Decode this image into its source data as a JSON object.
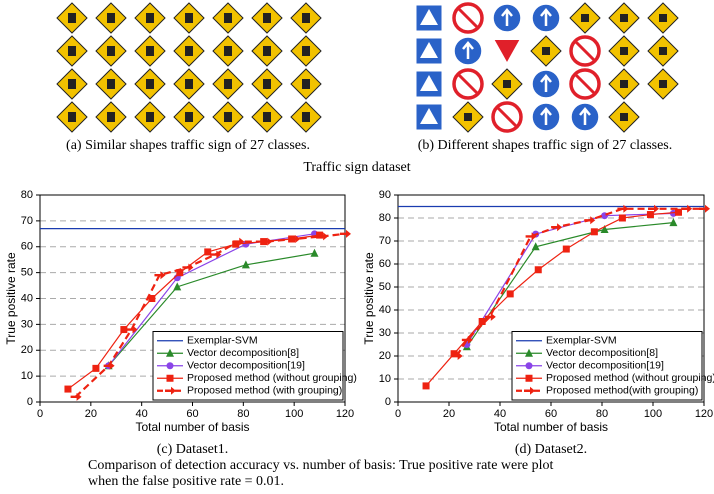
{
  "figure": {
    "caption_a": "(a) Similar shapes traffic sign of 27 classes.",
    "caption_b": "(b) Different shapes traffic sign of 27 classes.",
    "dataset_title": "Traffic sign dataset",
    "caption_bottom": [
      "Comparison of detection accuracy vs. number of basis: True positive rate were plot",
      "when the false positive rate = 0.01."
    ]
  },
  "chart_data": [
    {
      "type": "line",
      "caption": "(c) Dataset1.",
      "xlabel": "Total number of basis",
      "ylabel": "True positive rate",
      "xlim": [
        0,
        120
      ],
      "xticks": [
        0,
        20,
        40,
        60,
        80,
        100,
        120
      ],
      "ylim": [
        0,
        80
      ],
      "yticks": [
        0,
        10,
        20,
        30,
        40,
        50,
        60,
        70,
        80
      ],
      "grid": true,
      "legend": "lower right",
      "series": [
        {
          "name": "Exemplar-SVM",
          "color": "#1a3cb0",
          "marker": "none",
          "dashed": false,
          "x": [
            0,
            120
          ],
          "values": [
            67,
            67
          ]
        },
        {
          "name": "Vector decomposition[8]",
          "color": "#2a8a2a",
          "marker": "triangle",
          "dashed": false,
          "x": [
            27,
            54,
            81,
            108
          ],
          "values": [
            14,
            44.5,
            53,
            57.5
          ]
        },
        {
          "name": "Vector decomposition[19]",
          "color": "#8a44e8",
          "marker": "circle",
          "dashed": false,
          "x": [
            27,
            54,
            81,
            108
          ],
          "values": [
            14,
            48,
            61,
            65
          ]
        },
        {
          "name": "Proposed method (without grouping)",
          "color": "#ee2211",
          "marker": "square",
          "dashed": false,
          "x": [
            11,
            22,
            33,
            44,
            55,
            66,
            77,
            88,
            99,
            110
          ],
          "values": [
            5,
            13,
            28,
            40,
            50,
            58,
            61,
            62,
            63,
            64.5
          ]
        },
        {
          "name": "Proposed method (with grouping)",
          "color": "#ee2211",
          "marker": "arrow",
          "dashed": true,
          "x": [
            14,
            27,
            36,
            47,
            58,
            69,
            78,
            89,
            100,
            111,
            120
          ],
          "values": [
            2,
            14,
            28,
            49,
            52,
            57,
            62,
            62,
            63,
            64,
            65
          ]
        }
      ]
    },
    {
      "type": "line",
      "caption": "(d) Dataset2.",
      "xlabel": "Total number of basis",
      "ylabel": "True positive rate",
      "xlim": [
        0,
        120
      ],
      "xticks": [
        0,
        20,
        40,
        60,
        80,
        100,
        120
      ],
      "ylim": [
        0,
        90
      ],
      "yticks": [
        0,
        10,
        20,
        30,
        40,
        50,
        60,
        70,
        80,
        90
      ],
      "grid": true,
      "legend": "lower right",
      "series": [
        {
          "name": "Exemplar-SVM",
          "color": "#1a3cb0",
          "marker": "none",
          "dashed": false,
          "x": [
            0,
            120
          ],
          "values": [
            85,
            85
          ]
        },
        {
          "name": "Vector decomposition[8]",
          "color": "#2a8a2a",
          "marker": "triangle",
          "dashed": false,
          "x": [
            27,
            54,
            81,
            108
          ],
          "values": [
            24,
            67.5,
            75,
            78
          ]
        },
        {
          "name": "Vector decomposition[19]",
          "color": "#8a44e8",
          "marker": "circle",
          "dashed": false,
          "x": [
            27,
            54,
            81,
            108
          ],
          "values": [
            25,
            73,
            81,
            82
          ]
        },
        {
          "name": "Proposed method (without grouping)",
          "color": "#ee2211",
          "marker": "square",
          "dashed": false,
          "x": [
            11,
            22,
            33,
            44,
            55,
            66,
            77,
            88,
            99,
            110
          ],
          "values": [
            7,
            21,
            35,
            47,
            57.5,
            66.5,
            74,
            80,
            81.5,
            82.5
          ]
        },
        {
          "name": "Proposed method(with grouping)",
          "color": "#ee2211",
          "marker": "arrow",
          "dashed": true,
          "x": [
            23,
            27,
            36,
            52,
            62,
            75,
            88,
            100,
            113,
            120
          ],
          "values": [
            20,
            27,
            37,
            72,
            76,
            79,
            84,
            84,
            84,
            84
          ]
        }
      ]
    }
  ]
}
